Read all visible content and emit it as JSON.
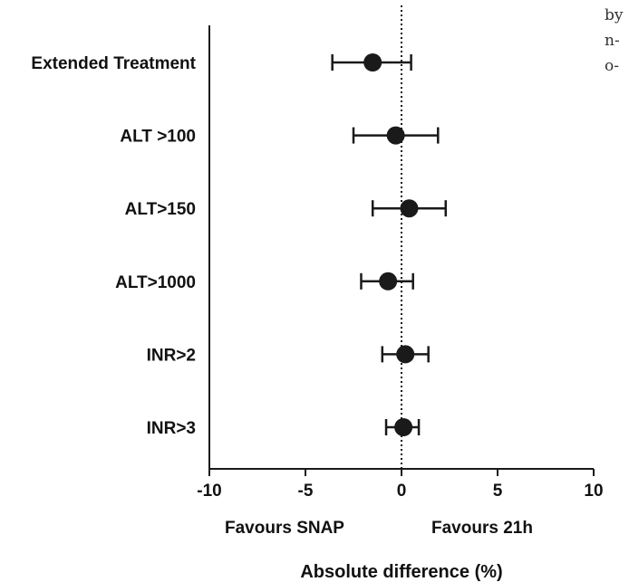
{
  "margin_text": [
    "by",
    "n-",
    "o-"
  ],
  "chart_data": {
    "type": "forest",
    "categories": [
      "Extended Treatment",
      "ALT >100",
      "ALT>150",
      "ALT>1000",
      "INR>2",
      "INR>3"
    ],
    "estimates": [
      -1.5,
      -0.3,
      0.4,
      -0.7,
      0.2,
      0.1
    ],
    "ci_low": [
      -3.6,
      -2.5,
      -1.5,
      -2.1,
      -1.0,
      -0.8
    ],
    "ci_high": [
      0.5,
      1.9,
      2.3,
      0.6,
      1.4,
      0.9
    ],
    "xlim": [
      -10,
      10
    ],
    "xticks": [
      -10,
      -5,
      0,
      5,
      10
    ],
    "reference_line": 0,
    "xlabel": "Absolute difference (%)",
    "favours_left": "Favours SNAP",
    "favours_right": "Favours 21h",
    "colors": {
      "marker": "#1a1a1a",
      "axis": "#1a1a1a"
    }
  }
}
